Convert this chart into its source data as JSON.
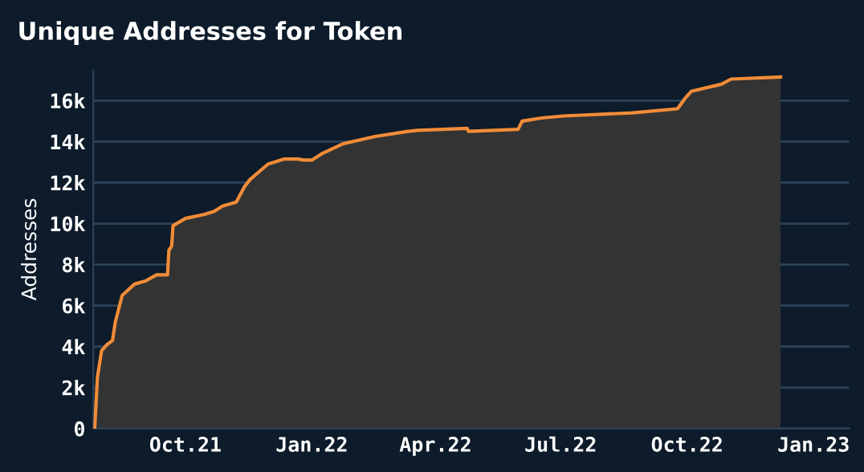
{
  "chart_data": {
    "type": "area",
    "title": "Unique Addresses for Token",
    "ylabel": "Addresses",
    "x": [
      "2021-07-27",
      "2021-07-29",
      "2021-08-01",
      "2021-08-05",
      "2021-08-09",
      "2021-08-11",
      "2021-08-16",
      "2021-08-25",
      "2021-09-02",
      "2021-09-10",
      "2021-09-18",
      "2021-09-19",
      "2021-09-21",
      "2021-09-22",
      "2021-10-01",
      "2021-10-15",
      "2021-10-22",
      "2021-10-28",
      "2021-11-07",
      "2021-11-13",
      "2021-11-17",
      "2021-11-30",
      "2021-12-12",
      "2021-12-22",
      "2021-12-26",
      "2022-01-01",
      "2022-01-08",
      "2022-01-24",
      "2022-02-16",
      "2022-03-12",
      "2022-03-19",
      "2022-04-24",
      "2022-04-25",
      "2022-05-31",
      "2022-06-03",
      "2022-06-17",
      "2022-07-03",
      "2022-08-22",
      "2022-09-24",
      "2022-09-30",
      "2022-10-04",
      "2022-10-26",
      "2022-11-02",
      "2022-12-08"
    ],
    "series": [
      {
        "color": "#f28c38",
        "values": [
          0,
          2500,
          3800,
          4100,
          4300,
          5200,
          6500,
          7050,
          7200,
          7500,
          7500,
          8700,
          8900,
          9900,
          10250,
          10450,
          10600,
          10850,
          11050,
          11800,
          12150,
          12900,
          13150,
          13150,
          13100,
          13100,
          13400,
          13900,
          14250,
          14500,
          14550,
          14650,
          14500,
          14600,
          15000,
          15150,
          15250,
          15400,
          15600,
          16150,
          16450,
          16800,
          17050,
          17150
        ]
      }
    ],
    "xlim": [
      "2021-07-26",
      "2023-01-27"
    ],
    "xticks": [
      {
        "value": "2021-10-01",
        "label": "Oct.21"
      },
      {
        "value": "2022-01-01",
        "label": "Jan.22"
      },
      {
        "value": "2022-04-01",
        "label": "Apr.22"
      },
      {
        "value": "2022-07-01",
        "label": "Jul.22"
      },
      {
        "value": "2022-10-01",
        "label": "Oct.22"
      },
      {
        "value": "2023-01-01",
        "label": "Jan.23"
      }
    ],
    "ylim": [
      0,
      17500
    ],
    "yticks": [
      0,
      {
        "value": 2000,
        "label": "2k"
      },
      {
        "value": 4000,
        "label": "4k"
      },
      {
        "value": 6000,
        "label": "6k"
      },
      {
        "value": 8000,
        "label": "8k"
      },
      {
        "value": 10000,
        "label": "10k"
      },
      {
        "value": 12000,
        "label": "12k"
      },
      {
        "value": 14000,
        "label": "14k"
      },
      {
        "value": 16000,
        "label": "16k"
      }
    ],
    "grid": "y"
  }
}
